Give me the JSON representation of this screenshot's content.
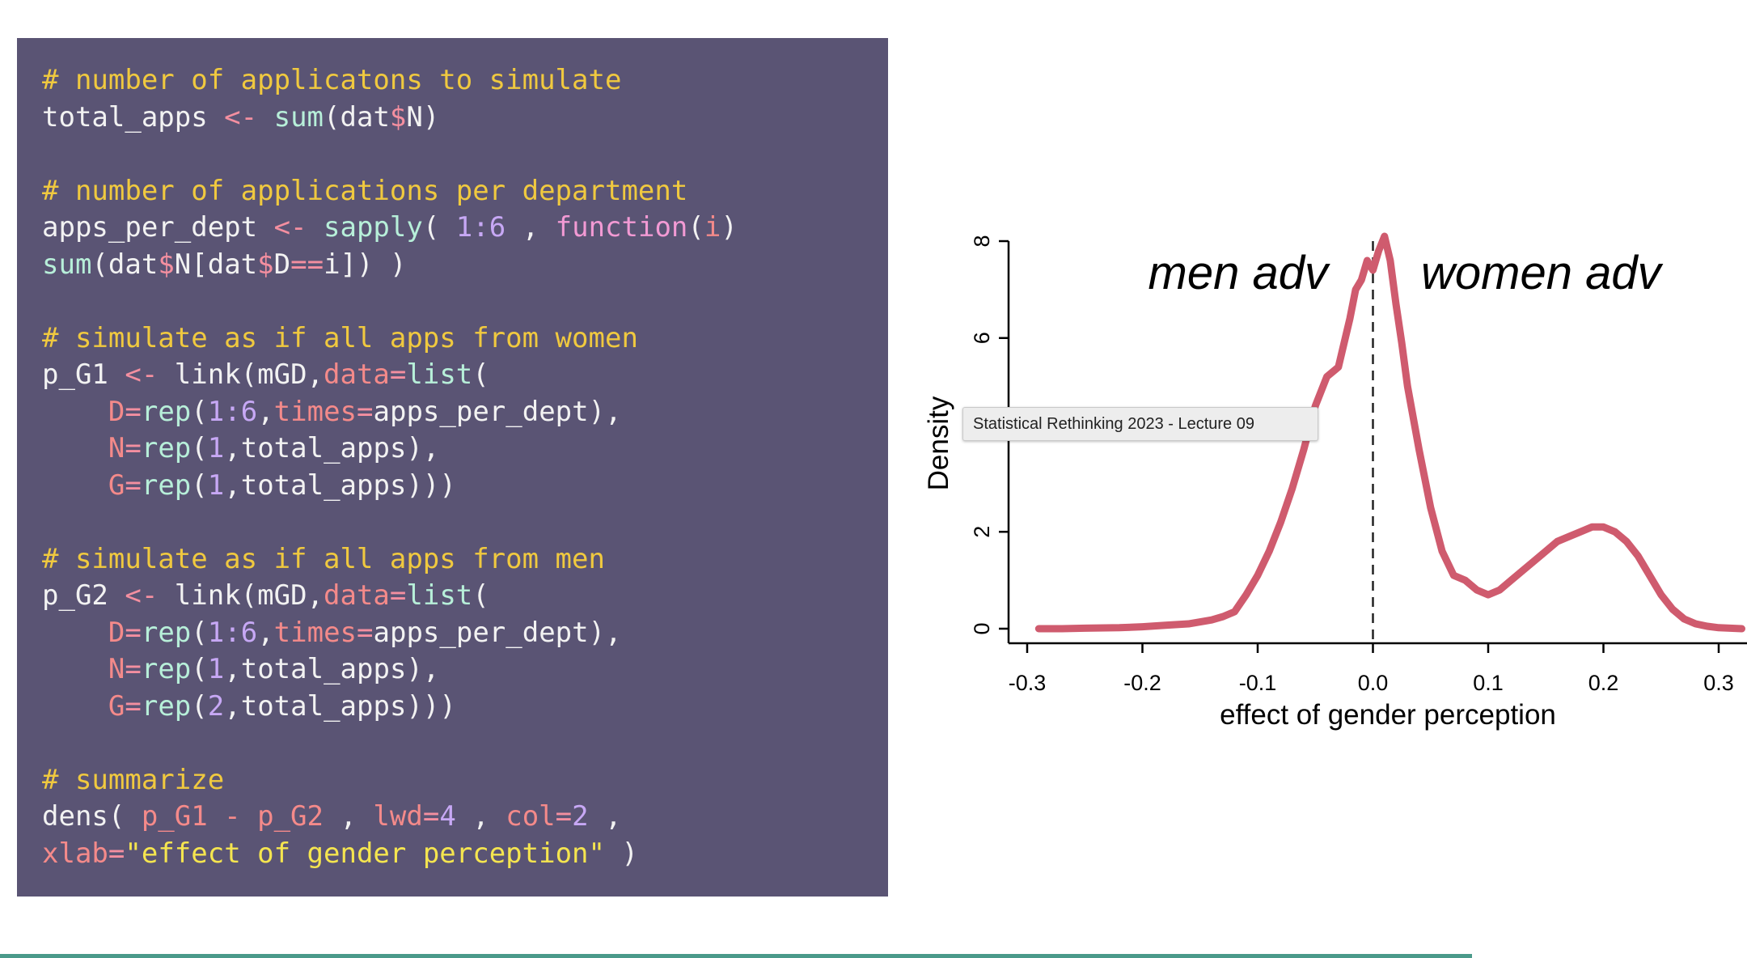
{
  "code": {
    "lines": [
      [
        {
          "t": "# number of applicatons to simulate",
          "c": "comment"
        }
      ],
      [
        {
          "t": "total_apps ",
          "c": "plain"
        },
        {
          "t": "<-",
          "c": "op"
        },
        {
          "t": " ",
          "c": "plain"
        },
        {
          "t": "sum",
          "c": "func"
        },
        {
          "t": "(dat",
          "c": "plain"
        },
        {
          "t": "$",
          "c": "op"
        },
        {
          "t": "N)",
          "c": "plain"
        }
      ],
      [],
      [
        {
          "t": "# number of applications per department",
          "c": "comment"
        }
      ],
      [
        {
          "t": "apps_per_dept ",
          "c": "plain"
        },
        {
          "t": "<-",
          "c": "op"
        },
        {
          "t": " ",
          "c": "plain"
        },
        {
          "t": "sapply",
          "c": "func"
        },
        {
          "t": "( ",
          "c": "plain"
        },
        {
          "t": "1:6",
          "c": "num"
        },
        {
          "t": " , ",
          "c": "plain"
        },
        {
          "t": "function",
          "c": "kw"
        },
        {
          "t": "(",
          "c": "plain"
        },
        {
          "t": "i",
          "c": "arg"
        },
        {
          "t": ")",
          "c": "plain"
        }
      ],
      [
        {
          "t": "sum",
          "c": "func"
        },
        {
          "t": "(dat",
          "c": "plain"
        },
        {
          "t": "$",
          "c": "op"
        },
        {
          "t": "N[dat",
          "c": "plain"
        },
        {
          "t": "$",
          "c": "op"
        },
        {
          "t": "D",
          "c": "plain"
        },
        {
          "t": "==",
          "c": "op"
        },
        {
          "t": "i]) )",
          "c": "plain"
        }
      ],
      [],
      [
        {
          "t": "# simulate as if all apps from women",
          "c": "comment"
        }
      ],
      [
        {
          "t": "p_G1 ",
          "c": "plain"
        },
        {
          "t": "<-",
          "c": "op"
        },
        {
          "t": " link(mGD,",
          "c": "plain"
        },
        {
          "t": "data",
          "c": "arg"
        },
        {
          "t": "=",
          "c": "op"
        },
        {
          "t": "list",
          "c": "func"
        },
        {
          "t": "(",
          "c": "plain"
        }
      ],
      [
        {
          "t": "    ",
          "c": "plain"
        },
        {
          "t": "D",
          "c": "arg"
        },
        {
          "t": "=",
          "c": "op"
        },
        {
          "t": "rep",
          "c": "func"
        },
        {
          "t": "(",
          "c": "plain"
        },
        {
          "t": "1:6",
          "c": "num"
        },
        {
          "t": ",",
          "c": "plain"
        },
        {
          "t": "times",
          "c": "arg"
        },
        {
          "t": "=",
          "c": "op"
        },
        {
          "t": "apps_per_dept),",
          "c": "plain"
        }
      ],
      [
        {
          "t": "    ",
          "c": "plain"
        },
        {
          "t": "N",
          "c": "arg"
        },
        {
          "t": "=",
          "c": "op"
        },
        {
          "t": "rep",
          "c": "func"
        },
        {
          "t": "(",
          "c": "plain"
        },
        {
          "t": "1",
          "c": "num"
        },
        {
          "t": ",total_apps),",
          "c": "plain"
        }
      ],
      [
        {
          "t": "    ",
          "c": "plain"
        },
        {
          "t": "G",
          "c": "arg"
        },
        {
          "t": "=",
          "c": "op"
        },
        {
          "t": "rep",
          "c": "func"
        },
        {
          "t": "(",
          "c": "plain"
        },
        {
          "t": "1",
          "c": "num"
        },
        {
          "t": ",total_apps)))",
          "c": "plain"
        }
      ],
      [],
      [
        {
          "t": "# simulate as if all apps from men",
          "c": "comment"
        }
      ],
      [
        {
          "t": "p_G2 ",
          "c": "plain"
        },
        {
          "t": "<-",
          "c": "op"
        },
        {
          "t": " link(mGD,",
          "c": "plain"
        },
        {
          "t": "data",
          "c": "arg"
        },
        {
          "t": "=",
          "c": "op"
        },
        {
          "t": "list",
          "c": "func"
        },
        {
          "t": "(",
          "c": "plain"
        }
      ],
      [
        {
          "t": "    ",
          "c": "plain"
        },
        {
          "t": "D",
          "c": "arg"
        },
        {
          "t": "=",
          "c": "op"
        },
        {
          "t": "rep",
          "c": "func"
        },
        {
          "t": "(",
          "c": "plain"
        },
        {
          "t": "1:6",
          "c": "num"
        },
        {
          "t": ",",
          "c": "plain"
        },
        {
          "t": "times",
          "c": "arg"
        },
        {
          "t": "=",
          "c": "op"
        },
        {
          "t": "apps_per_dept),",
          "c": "plain"
        }
      ],
      [
        {
          "t": "    ",
          "c": "plain"
        },
        {
          "t": "N",
          "c": "arg"
        },
        {
          "t": "=",
          "c": "op"
        },
        {
          "t": "rep",
          "c": "func"
        },
        {
          "t": "(",
          "c": "plain"
        },
        {
          "t": "1",
          "c": "num"
        },
        {
          "t": ",total_apps),",
          "c": "plain"
        }
      ],
      [
        {
          "t": "    ",
          "c": "plain"
        },
        {
          "t": "G",
          "c": "arg"
        },
        {
          "t": "=",
          "c": "op"
        },
        {
          "t": "rep",
          "c": "func"
        },
        {
          "t": "(",
          "c": "plain"
        },
        {
          "t": "2",
          "c": "num"
        },
        {
          "t": ",total_apps)))",
          "c": "plain"
        }
      ],
      [],
      [
        {
          "t": "# summarize",
          "c": "comment"
        }
      ],
      [
        {
          "t": "dens( ",
          "c": "plain"
        },
        {
          "t": "p_G1 - p_G2",
          "c": "arg"
        },
        {
          "t": " , ",
          "c": "plain"
        },
        {
          "t": "lwd",
          "c": "arg"
        },
        {
          "t": "=",
          "c": "op"
        },
        {
          "t": "4",
          "c": "num"
        },
        {
          "t": " , ",
          "c": "plain"
        },
        {
          "t": "col",
          "c": "arg"
        },
        {
          "t": "=",
          "c": "op"
        },
        {
          "t": "2",
          "c": "num"
        },
        {
          "t": " ,",
          "c": "plain"
        }
      ],
      [
        {
          "t": "xlab",
          "c": "arg"
        },
        {
          "t": "=",
          "c": "op"
        },
        {
          "t": "\"effect of gender perception\"",
          "c": "str"
        },
        {
          "t": " )",
          "c": "plain"
        }
      ]
    ]
  },
  "chart_data": {
    "type": "line",
    "xlabel": "effect of gender perception",
    "ylabel": "Density",
    "xlim": [
      -0.3,
      0.33
    ],
    "ylim": [
      0,
      8.5
    ],
    "xticks": [
      -0.3,
      -0.2,
      -0.1,
      0.0,
      0.1,
      0.2,
      0.3
    ],
    "xtick_labels": [
      "-0.3",
      "-0.2",
      "-0.1",
      "0.0",
      "0.1",
      "0.2",
      "0.3"
    ],
    "yticks": [
      0,
      2,
      4,
      6,
      8
    ],
    "ytick_labels": [
      "0",
      "2",
      "4",
      "6",
      "8"
    ],
    "reference_line_x": 0.0,
    "annotations": [
      "men adv",
      "women adv"
    ],
    "series": [
      {
        "color": "#cf5b6e",
        "x": [
          -0.29,
          -0.27,
          -0.25,
          -0.22,
          -0.2,
          -0.18,
          -0.16,
          -0.14,
          -0.13,
          -0.12,
          -0.11,
          -0.1,
          -0.09,
          -0.08,
          -0.07,
          -0.06,
          -0.05,
          -0.04,
          -0.03,
          -0.025,
          -0.02,
          -0.015,
          -0.01,
          -0.005,
          0.0,
          0.005,
          0.01,
          0.015,
          0.02,
          0.025,
          0.03,
          0.04,
          0.05,
          0.06,
          0.07,
          0.08,
          0.09,
          0.1,
          0.11,
          0.12,
          0.13,
          0.14,
          0.15,
          0.16,
          0.17,
          0.18,
          0.19,
          0.2,
          0.21,
          0.22,
          0.23,
          0.24,
          0.25,
          0.26,
          0.27,
          0.28,
          0.29,
          0.3,
          0.32
        ],
        "y": [
          0.0,
          0.0,
          0.01,
          0.02,
          0.04,
          0.07,
          0.1,
          0.18,
          0.25,
          0.35,
          0.7,
          1.1,
          1.6,
          2.2,
          2.9,
          3.7,
          4.6,
          5.2,
          5.4,
          5.9,
          6.4,
          7.0,
          7.2,
          7.6,
          7.4,
          7.8,
          8.1,
          7.6,
          6.7,
          5.9,
          5.0,
          3.7,
          2.5,
          1.6,
          1.1,
          1.0,
          0.8,
          0.7,
          0.8,
          1.0,
          1.2,
          1.4,
          1.6,
          1.8,
          1.9,
          2.0,
          2.1,
          2.1,
          2.0,
          1.8,
          1.5,
          1.1,
          0.7,
          0.4,
          0.2,
          0.1,
          0.05,
          0.02,
          0.0
        ]
      }
    ]
  },
  "tooltip": {
    "text": "Statistical Rethinking 2023 - Lecture 09"
  }
}
